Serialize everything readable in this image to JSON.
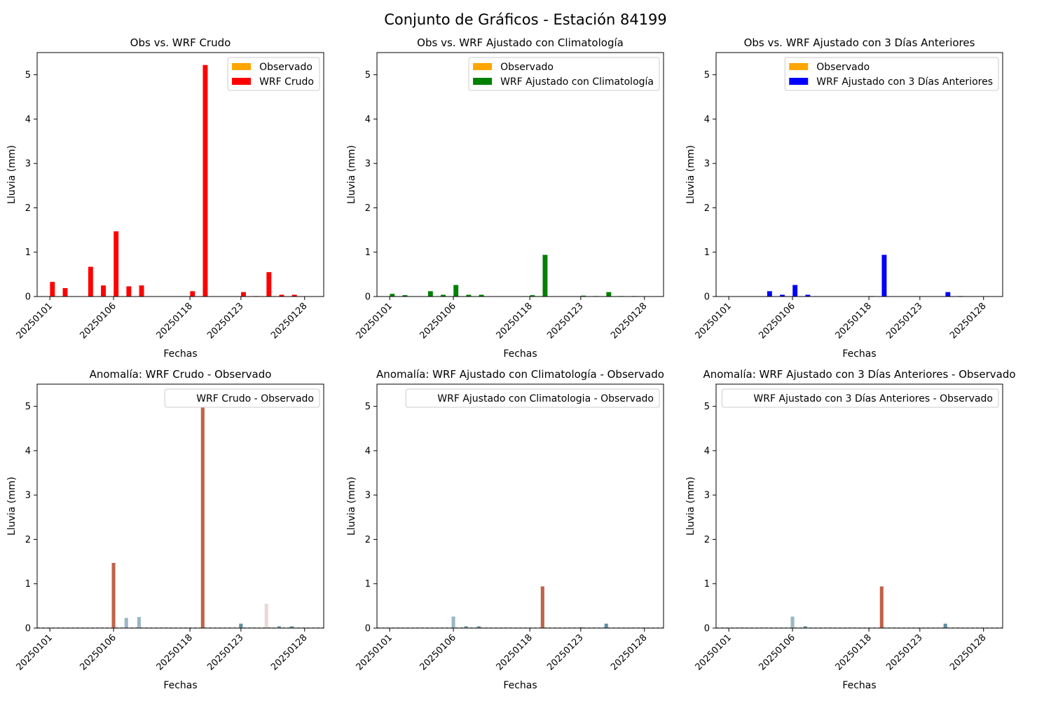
{
  "suptitle": "Conjunto de Gráficos - Estación 84199",
  "shared": {
    "ylabel": "Lluvia (mm)",
    "xlabel": "Fechas",
    "yticks": [
      0,
      1,
      2,
      3,
      4,
      5
    ],
    "xtick_labels": [
      "20250101",
      "20250106",
      "20250118",
      "20250123",
      "20250128"
    ]
  },
  "colors": {
    "observado": "#ffa500",
    "crudo": "#ff0000",
    "clima": "#008000",
    "tres_dias": "#0000ff",
    "anomaly_positive": "#c0634b",
    "anomaly_negative": "#5f8ea3",
    "anomaly_light_positive": "#ead8d5",
    "anomaly_light_negative": "#9ab7c4"
  },
  "chart_data": [
    {
      "type": "bar",
      "title": "Obs vs. WRF Crudo",
      "xlabel": "Fechas",
      "ylabel": "Lluvia (mm)",
      "ylim": [
        0,
        5.5
      ],
      "legend": "top-right",
      "series": [
        {
          "name": "Observado",
          "color": "#ffa500",
          "points": []
        },
        {
          "name": "WRF Crudo",
          "color": "#ff0000",
          "points": [
            {
              "x": 0.2,
              "y": 0.33
            },
            {
              "x": 1.2,
              "y": 0.19
            },
            {
              "x": 3.2,
              "y": 0.67
            },
            {
              "x": 4.2,
              "y": 0.25
            },
            {
              "x": 5.2,
              "y": 1.47
            },
            {
              "x": 6.2,
              "y": 0.23
            },
            {
              "x": 7.2,
              "y": 0.25
            },
            {
              "x": 11.2,
              "y": 0.12
            },
            {
              "x": 12.2,
              "y": 5.22
            },
            {
              "x": 15.2,
              "y": 0.1
            },
            {
              "x": 16.2,
              "y": 0.01
            },
            {
              "x": 17.2,
              "y": 0.55
            },
            {
              "x": 18.2,
              "y": 0.04
            },
            {
              "x": 19.2,
              "y": 0.04
            }
          ]
        }
      ]
    },
    {
      "type": "bar",
      "title": "Obs vs. WRF Ajustado con Climatología",
      "xlabel": "Fechas",
      "ylabel": "Lluvia (mm)",
      "ylim": [
        0,
        5.5
      ],
      "legend": "top-right",
      "series": [
        {
          "name": "Observado",
          "color": "#ffa500",
          "points": []
        },
        {
          "name": "WRF Ajustado con Climatología",
          "color": "#008000",
          "points": [
            {
              "x": 0.2,
              "y": 0.06
            },
            {
              "x": 1.2,
              "y": 0.03
            },
            {
              "x": 3.2,
              "y": 0.12
            },
            {
              "x": 4.2,
              "y": 0.04
            },
            {
              "x": 5.2,
              "y": 0.26
            },
            {
              "x": 6.2,
              "y": 0.04
            },
            {
              "x": 7.2,
              "y": 0.04
            },
            {
              "x": 11.2,
              "y": 0.03
            },
            {
              "x": 12.2,
              "y": 0.94
            },
            {
              "x": 15.2,
              "y": 0.02
            },
            {
              "x": 16.2,
              "y": 0.01
            },
            {
              "x": 17.2,
              "y": 0.1
            },
            {
              "x": 18.2,
              "y": 0.01
            },
            {
              "x": 19.2,
              "y": 0.01
            }
          ]
        }
      ]
    },
    {
      "type": "bar",
      "title": "Obs vs. WRF Ajustado con 3 Días Anteriores",
      "xlabel": "Fechas",
      "ylabel": "Lluvia (mm)",
      "ylim": [
        0,
        5.5
      ],
      "legend": "top-right",
      "series": [
        {
          "name": "Observado",
          "color": "#ffa500",
          "points": []
        },
        {
          "name": "WRF Ajustado con 3 Días Anteriores",
          "color": "#0000ff",
          "points": [
            {
              "x": 3.2,
              "y": 0.12
            },
            {
              "x": 4.2,
              "y": 0.04
            },
            {
              "x": 5.2,
              "y": 0.26
            },
            {
              "x": 6.2,
              "y": 0.04
            },
            {
              "x": 11.2,
              "y": 0.01
            },
            {
              "x": 12.2,
              "y": 0.94
            },
            {
              "x": 17.2,
              "y": 0.1
            },
            {
              "x": 18.2,
              "y": 0.01
            }
          ]
        }
      ]
    },
    {
      "type": "bar",
      "title": "Anomalía: WRF Crudo - Observado",
      "xlabel": "Fechas",
      "ylabel": "Lluvia (mm)",
      "ylim": [
        0,
        5.5
      ],
      "legend": "top-right",
      "series": [
        {
          "name": "WRF Crudo - Observado",
          "points": [
            {
              "x": 5,
              "y": 1.47,
              "color": "#c0634b"
            },
            {
              "x": 6,
              "y": 0.23,
              "color": "#9ab7c4"
            },
            {
              "x": 7,
              "y": 0.25,
              "color": "#9ab7c4"
            },
            {
              "x": 12,
              "y": 5.22,
              "color": "#c0634b"
            },
            {
              "x": 15,
              "y": 0.1,
              "color": "#5f8ea3"
            },
            {
              "x": 16,
              "y": 0.01,
              "color": "#5f8ea3"
            },
            {
              "x": 17,
              "y": 0.55,
              "color": "#ead8d5"
            },
            {
              "x": 18,
              "y": 0.04,
              "color": "#5f8ea3"
            },
            {
              "x": 19,
              "y": 0.04,
              "color": "#5f8ea3"
            }
          ]
        }
      ]
    },
    {
      "type": "bar",
      "title": "Anomalía: WRF Ajustado con Climatología - Observado",
      "xlabel": "Fechas",
      "ylabel": "Lluvia (mm)",
      "ylim": [
        0,
        5.5
      ],
      "legend": "top-right",
      "series": [
        {
          "name": "WRF Ajustado con Climatologia - Observado",
          "points": [
            {
              "x": 5,
              "y": 0.26,
              "color": "#9ab7c4"
            },
            {
              "x": 6,
              "y": 0.04,
              "color": "#5f8ea3"
            },
            {
              "x": 7,
              "y": 0.04,
              "color": "#5f8ea3"
            },
            {
              "x": 12,
              "y": 0.94,
              "color": "#c0634b"
            },
            {
              "x": 15,
              "y": 0.02,
              "color": "#5f8ea3"
            },
            {
              "x": 16,
              "y": 0.01,
              "color": "#5f8ea3"
            },
            {
              "x": 17,
              "y": 0.1,
              "color": "#5f8ea3"
            },
            {
              "x": 18,
              "y": 0.01,
              "color": "#5f8ea3"
            },
            {
              "x": 19,
              "y": 0.01,
              "color": "#5f8ea3"
            }
          ]
        }
      ]
    },
    {
      "type": "bar",
      "title": "Anomalía: WRF Ajustado con 3 Días Anteriores - Observado",
      "xlabel": "Fechas",
      "ylabel": "Lluvia (mm)",
      "ylim": [
        0,
        5.5
      ],
      "legend": "top-right",
      "series": [
        {
          "name": "WRF Ajustado con 3 Días Anteriores - Observado",
          "points": [
            {
              "x": 5,
              "y": 0.26,
              "color": "#9ab7c4"
            },
            {
              "x": 6,
              "y": 0.04,
              "color": "#5f8ea3"
            },
            {
              "x": 12,
              "y": 0.94,
              "color": "#c0634b"
            },
            {
              "x": 17,
              "y": 0.1,
              "color": "#5f8ea3"
            },
            {
              "x": 18,
              "y": 0.01,
              "color": "#5f8ea3"
            }
          ]
        }
      ]
    }
  ]
}
